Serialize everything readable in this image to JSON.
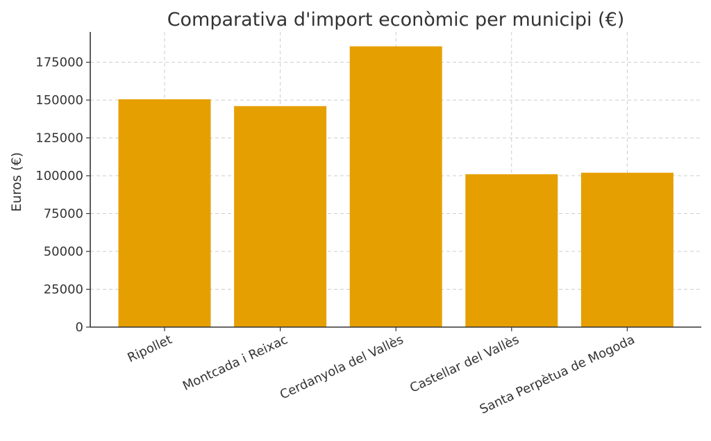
{
  "chart_data": {
    "type": "bar",
    "title": "Comparativa d'import econòmic per municipi (€)",
    "xlabel": "",
    "ylabel": "Euros (€)",
    "categories": [
      "Ripollet",
      "Montcada i Reixac",
      "Cerdanyola del Vallès",
      "Castellar del Vallès",
      "Santa Perpètua de Mogoda"
    ],
    "values": [
      150500,
      146000,
      185500,
      101000,
      102000
    ],
    "ylim": [
      0,
      195000
    ],
    "yticks": [
      0,
      25000,
      50000,
      75000,
      100000,
      125000,
      150000,
      175000
    ],
    "ytick_labels": [
      "0",
      "25000",
      "50000",
      "75000",
      "100000",
      "125000",
      "150000",
      "175000"
    ],
    "bar_color": "#E69F00",
    "grid": true
  }
}
